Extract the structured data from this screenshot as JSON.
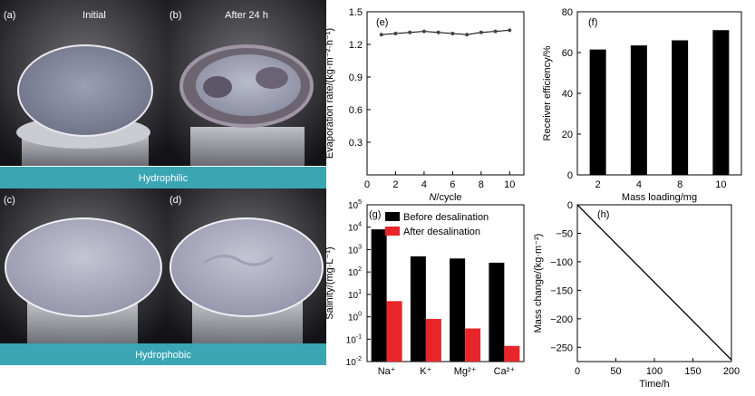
{
  "photos": {
    "panels": [
      {
        "tag": "(a)",
        "label": "Initial"
      },
      {
        "tag": "(b)",
        "label": "After 24 h"
      },
      {
        "tag": "(c)",
        "label": ""
      },
      {
        "tag": "(d)",
        "label": ""
      }
    ],
    "banner_top": "Hydrophilic",
    "banner_bottom": "Hydrophobic",
    "colors": {
      "banner": "#3aa6b4",
      "banner_text": "#ffffff"
    }
  },
  "chart_data": [
    {
      "tag": "(e)",
      "type": "line",
      "xlabel_italic": "N",
      "xlabel_rest": "/cycle",
      "ylabel": "Evaporation rate/(kg·m⁻²·h⁻¹)",
      "x": [
        1,
        2,
        3,
        4,
        5,
        6,
        7,
        8,
        9,
        10
      ],
      "y": [
        1.29,
        1.3,
        1.31,
        1.32,
        1.31,
        1.3,
        1.29,
        1.31,
        1.32,
        1.33
      ],
      "xlim": [
        0,
        11
      ],
      "ylim": [
        0,
        1.5
      ],
      "xticks": [
        0,
        2,
        4,
        6,
        8,
        10
      ],
      "yticks": [
        0.3,
        0.6,
        0.9,
        1.2,
        1.5
      ],
      "yticklabels": [
        "0.3",
        "0.6",
        "0.9",
        "1.2",
        "1.5"
      ]
    },
    {
      "tag": "(f)",
      "type": "bar",
      "xlabel": "Mass loading/mg",
      "ylabel": "Receiver efficiency/%",
      "categories": [
        "2",
        "4",
        "8",
        "10"
      ],
      "values": [
        61.5,
        63.5,
        66,
        71
      ],
      "ylim": [
        0,
        80
      ],
      "yticks": [
        0,
        20,
        40,
        60,
        80
      ],
      "yticklabels": [
        "0",
        "20",
        "40",
        "60",
        "80"
      ]
    },
    {
      "tag": "(g)",
      "type": "bar",
      "yscale": "log",
      "ylabel": "Salinity/(mg·L⁻¹)",
      "categories": [
        "Na⁺",
        "K⁺",
        "Mg²⁺",
        "Ca²⁺"
      ],
      "series": [
        {
          "name": "Before desalination",
          "values": [
            8000,
            500,
            400,
            260
          ],
          "color": "#000000"
        },
        {
          "name": "After desalination",
          "values": [
            5,
            0.8,
            0.3,
            0.05
          ],
          "color": "#e8262a"
        }
      ],
      "ylim": [
        0.01,
        100000
      ],
      "yticks": [
        0.01,
        0.1,
        1,
        10,
        100,
        1000,
        10000,
        100000
      ],
      "yticklabels": [
        [
          "10",
          "-2"
        ],
        [
          "10",
          "-1"
        ],
        [
          "10",
          "0"
        ],
        [
          "10",
          "1"
        ],
        [
          "10",
          "2"
        ],
        [
          "10",
          "3"
        ],
        [
          "10",
          "4"
        ],
        [
          "10",
          "5"
        ]
      ]
    },
    {
      "tag": "(h)",
      "type": "line",
      "xlabel": "Time/h",
      "ylabel": "Mass change/(kg·m⁻²)",
      "x": [
        0,
        200
      ],
      "y": [
        0,
        -272
      ],
      "xlim": [
        0,
        200
      ],
      "ylim": [
        -275,
        0
      ],
      "xticks": [
        0,
        50,
        100,
        150,
        200
      ],
      "yticks": [
        0,
        -50,
        -100,
        -150,
        -200,
        -250
      ],
      "yticklabels": [
        "0",
        "−50",
        "−100",
        "−150",
        "−200",
        "−250"
      ]
    }
  ]
}
